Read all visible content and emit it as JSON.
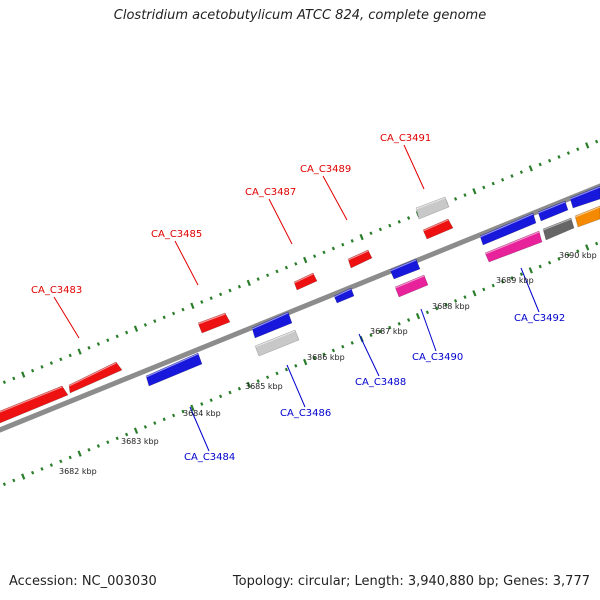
{
  "title": "Clostridium acetobutylicum ATCC 824, complete genome",
  "footer": {
    "accession": "Accession: NC_003030",
    "topology": "Topology: circular; Length: 3,940,880 bp; Genes: 3,777"
  },
  "colors": {
    "backbone": "#8c8c8c",
    "tick": "#2a7d2a",
    "forward_label": "#e00000",
    "reverse_label": "#0000cc",
    "red": "#ee1111",
    "blue": "#1818dd",
    "pink": "#e8229a",
    "lightgray": "#c8c8c8",
    "darkgray": "#666666",
    "orange": "#f58a00"
  },
  "kbp_labels": [
    "3682 kbp",
    "3683 kbp",
    "3684 kbp",
    "3685 kbp",
    "3686 kbp",
    "3687 kbp",
    "3688 kbp",
    "3689 kbp",
    "3690 kbp"
  ],
  "forward_labels": [
    "CA_C3483",
    "CA_C3485",
    "CA_C3487",
    "CA_C3489",
    "CA_C3491"
  ],
  "reverse_labels": [
    "CA_C3484",
    "CA_C3486",
    "CA_C3488",
    "CA_C3490",
    "CA_C3492"
  ]
}
